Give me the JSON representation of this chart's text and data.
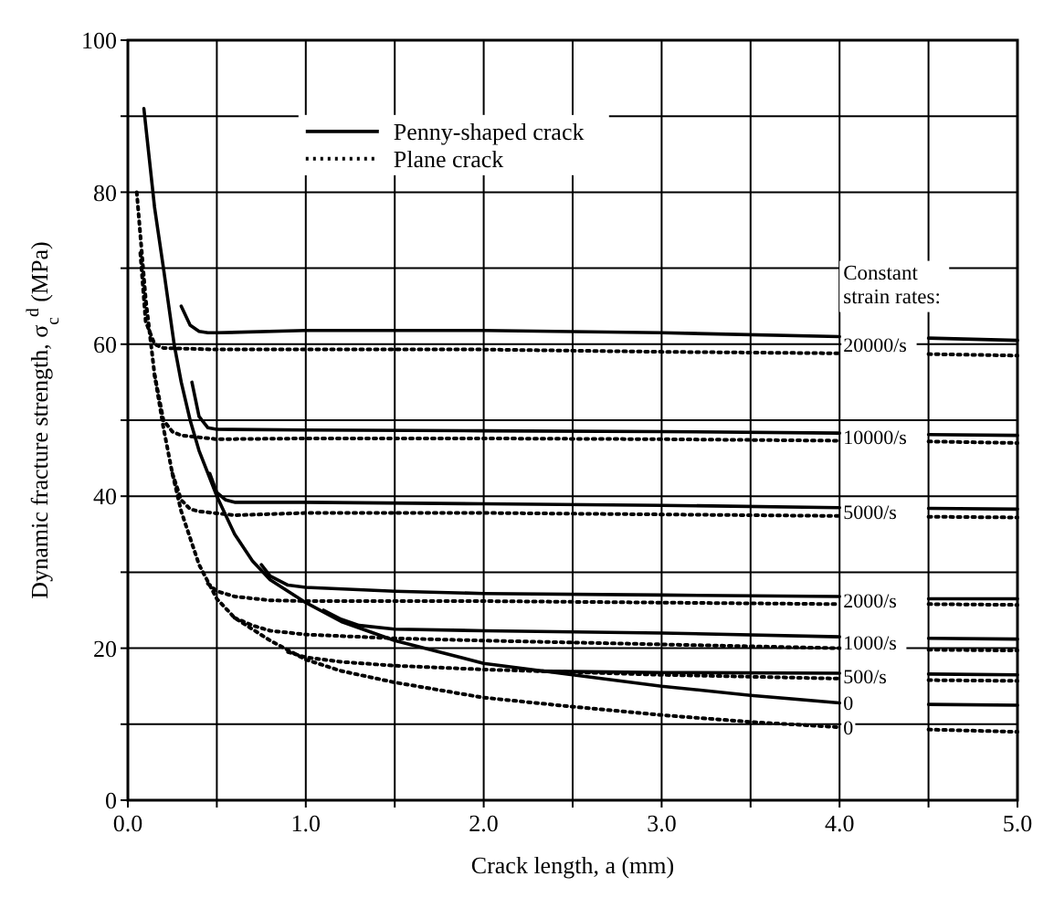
{
  "chart_data": {
    "type": "line",
    "xlabel": "Crack length, a (mm)",
    "ylabel": "Dynamic fracture strength, σ$_{c}$$^{d}$ (MPa)",
    "xlim": [
      0,
      5
    ],
    "ylim": [
      0,
      100
    ],
    "xticks": [
      {
        "value": 0,
        "label": "0.0"
      },
      {
        "value": 0.5,
        "label": null
      },
      {
        "value": 1,
        "label": "1.0"
      },
      {
        "value": 1.5,
        "label": null
      },
      {
        "value": 2,
        "label": "2.0"
      },
      {
        "value": 2.5,
        "label": null
      },
      {
        "value": 3,
        "label": "3.0"
      },
      {
        "value": 3.5,
        "label": null
      },
      {
        "value": 4,
        "label": "4.0"
      },
      {
        "value": 4.5,
        "label": null
      },
      {
        "value": 5,
        "label": "5.0"
      }
    ],
    "yticks": [
      0,
      {
        "value": 10,
        "label": null
      },
      20,
      {
        "value": 30,
        "label": null
      },
      40,
      {
        "value": 50,
        "label": null
      },
      60,
      {
        "value": 70,
        "label": null
      },
      80,
      {
        "value": 90,
        "label": null
      },
      100
    ],
    "grid": true,
    "legend": "top",
    "marker": "none",
    "series": [
      {
        "name": "Penny-shaped crack",
        "color": "#000000",
        "line_style": "solid",
        "x": [
          0.09,
          0.15,
          0.2,
          0.26,
          0.3,
          0.35,
          0.4,
          0.5,
          0.6,
          0.7,
          0.8,
          1.0,
          1.2,
          1.5,
          2.0,
          2.5,
          3.0,
          3.5,
          4.0,
          4.25,
          4.5,
          5.0
        ],
        "values": [
          91,
          78,
          70,
          60,
          55,
          50,
          46,
          40,
          35,
          31.5,
          29,
          26,
          23.5,
          21,
          18,
          16.5,
          15,
          13.8,
          12.8,
          null,
          12.6,
          12.5
        ]
      },
      {
        "name": "Plane crack",
        "color": "#000000",
        "line_style": "dotted",
        "x": [
          0.05,
          0.1,
          0.15,
          0.2,
          0.25,
          0.3,
          0.4,
          0.5,
          0.6,
          0.8,
          1.0,
          1.2,
          1.5,
          2,
          2.5,
          3,
          3.5,
          4,
          4.25,
          4.5,
          5
        ],
        "values": [
          80,
          66,
          56,
          49,
          43,
          38,
          31,
          26.5,
          24,
          21,
          18.5,
          17,
          15.5,
          13.5,
          12.3,
          11.2,
          10.3,
          9.6,
          null,
          9.3,
          9
        ]
      },
      {
        "color": "#000000",
        "line_style": "solid",
        "x": [
          0.3,
          0.35,
          0.4,
          0.45,
          0.5,
          1,
          2,
          3,
          4,
          4.25,
          4.5,
          5
        ],
        "values": [
          65,
          62.5,
          61.7,
          61.5,
          61.5,
          61.8,
          61.8,
          61.5,
          61,
          null,
          60.8,
          60.5
        ]
      },
      {
        "color": "#000000",
        "line_style": "solid",
        "x": [
          0.36,
          0.4,
          0.45,
          0.5,
          1,
          2,
          3,
          4,
          4.25,
          4.5,
          5
        ],
        "values": [
          55,
          50.5,
          49,
          48.8,
          48.7,
          48.6,
          48.5,
          48.3,
          null,
          48.1,
          48
        ]
      },
      {
        "color": "#000000",
        "line_style": "solid",
        "x": [
          0.46,
          0.5,
          0.55,
          0.6,
          1,
          2,
          3,
          4,
          4.25,
          4.5,
          5
        ],
        "values": [
          43,
          40.5,
          39.5,
          39.2,
          39.2,
          39,
          38.8,
          38.5,
          null,
          38.4,
          38.3
        ]
      },
      {
        "color": "#000000",
        "line_style": "solid",
        "x": [
          0.75,
          0.8,
          0.9,
          1.0,
          1.5,
          2,
          3,
          4,
          4.25,
          4.5,
          5
        ],
        "values": [
          31,
          29.5,
          28.3,
          28,
          27.5,
          27.2,
          27,
          26.8,
          null,
          26.5,
          26.5
        ]
      },
      {
        "color": "#000000",
        "line_style": "solid",
        "x": [
          1.1,
          1.2,
          1.3,
          1.5,
          2,
          3,
          4,
          4.25,
          4.5,
          5
        ],
        "values": [
          25,
          23.8,
          23,
          22.5,
          22.3,
          22,
          21.5,
          null,
          21.3,
          21.2
        ]
      },
      {
        "color": "#000000",
        "line_style": "solid",
        "x": [
          2.3,
          2.6,
          3,
          4,
          4.25,
          4.5,
          5
        ],
        "values": [
          17.0,
          16.9,
          16.8,
          16.7,
          null,
          16.6,
          16.5
        ]
      },
      {
        "color": "#000000",
        "line_style": "dotted",
        "x": [
          0.07,
          0.1,
          0.15,
          0.2,
          0.5,
          1,
          2,
          3,
          4,
          4.25,
          4.5,
          5
        ],
        "values": [
          72,
          63,
          60,
          59.5,
          59.3,
          59.3,
          59.3,
          59,
          58.8,
          null,
          58.7,
          58.5
        ]
      },
      {
        "color": "#000000",
        "line_style": "dotted",
        "x": [
          0.15,
          0.2,
          0.25,
          0.3,
          0.5,
          1,
          2,
          3,
          4,
          4.25,
          4.5,
          5
        ],
        "values": [
          56,
          50,
          48.5,
          48,
          47.5,
          47.6,
          47.6,
          47.5,
          47.3,
          null,
          47.2,
          47
        ]
      },
      {
        "color": "#000000",
        "line_style": "dotted",
        "x": [
          0.25,
          0.3,
          0.35,
          0.4,
          0.6,
          1,
          2,
          3,
          4,
          4.25,
          4.5,
          5
        ],
        "values": [
          43,
          39.5,
          38.3,
          38,
          37.5,
          37.8,
          37.8,
          37.6,
          37.4,
          null,
          37.3,
          37.2
        ]
      },
      {
        "color": "#000000",
        "line_style": "dotted",
        "x": [
          0.45,
          0.5,
          0.6,
          0.8,
          1,
          2,
          3,
          4,
          4.25,
          4.5,
          5
        ],
        "values": [
          28.5,
          27.5,
          26.8,
          26.3,
          26.2,
          26.2,
          26,
          25.8,
          null,
          25.8,
          25.7
        ]
      },
      {
        "color": "#000000",
        "line_style": "dotted",
        "x": [
          0.6,
          0.7,
          0.8,
          1,
          1.5,
          2,
          3,
          4,
          4.25,
          4.5,
          5
        ],
        "values": [
          24,
          23,
          22.3,
          21.8,
          21.3,
          21,
          20.5,
          20,
          null,
          19.8,
          19.7
        ]
      },
      {
        "color": "#000000",
        "line_style": "dotted",
        "x": [
          0.9,
          1,
          1.2,
          1.5,
          2,
          3,
          4,
          4.25,
          4.5,
          5
        ],
        "values": [
          19.5,
          18.8,
          18.2,
          17.7,
          17.2,
          16.5,
          16,
          null,
          15.8,
          15.7
        ]
      }
    ],
    "annotations": [
      "Constant strain rates:",
      "20000/s",
      "10000/s",
      "5000/s",
      "2000/s",
      "1000/s",
      "500/s",
      "0",
      "0"
    ]
  }
}
